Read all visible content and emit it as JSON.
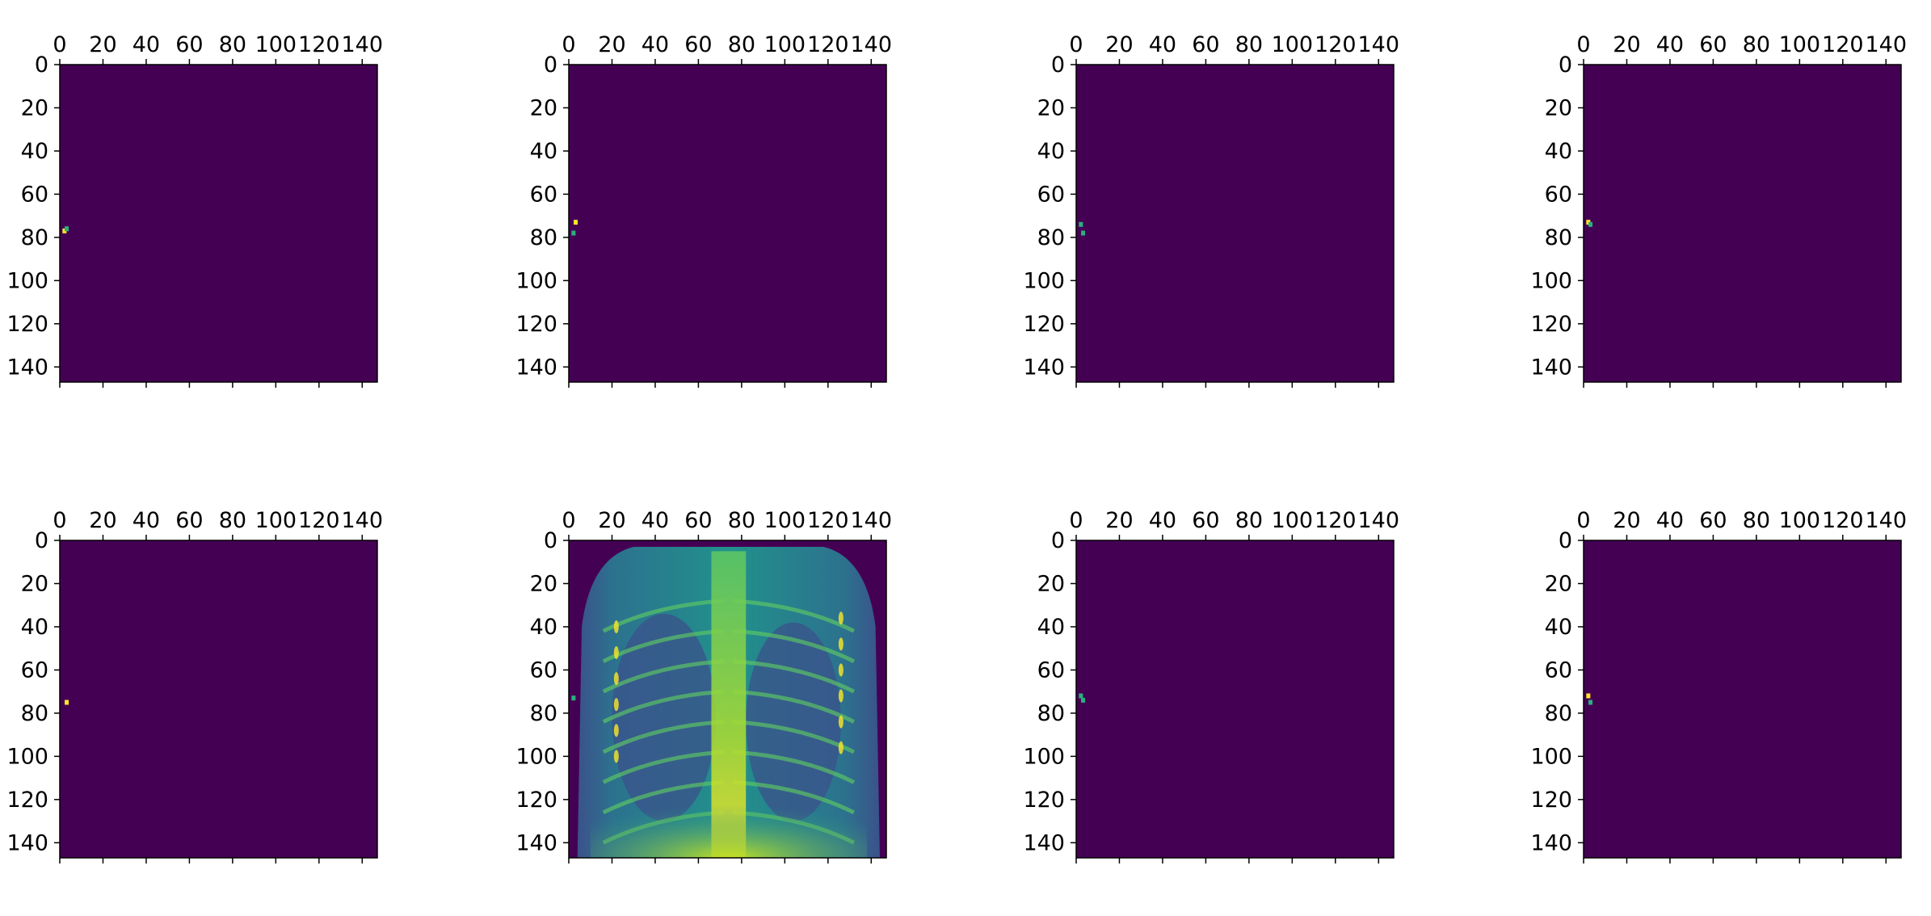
{
  "figure": {
    "colors": {
      "background": "#440154",
      "spine": "#000000",
      "feature_spot": "#2ab07f",
      "feature_hot": "#fde725",
      "xray_low": "#3b528b",
      "xray_mid": "#21918c",
      "xray_high": "#5ec962",
      "xray_peak": "#fde725"
    }
  },
  "chart_data": [
    {
      "type": "heatmap",
      "colormap": "viridis",
      "grid": false,
      "x_axis_position": "top",
      "y_inverted": true,
      "xlim": [
        0,
        147
      ],
      "ylim": [
        147,
        0
      ],
      "xticks": [
        "0",
        "20",
        "40",
        "60",
        "80",
        "100",
        "120",
        "140"
      ],
      "yticks": [
        "0",
        "20",
        "40",
        "60",
        "80",
        "100",
        "120",
        "140"
      ],
      "content": "sparse",
      "bright_spots": [
        {
          "x": 2,
          "y": 77,
          "value": 1.0
        },
        {
          "x": 3,
          "y": 76,
          "value": 0.7
        }
      ]
    },
    {
      "type": "heatmap",
      "colormap": "viridis",
      "grid": false,
      "x_axis_position": "top",
      "y_inverted": true,
      "xlim": [
        0,
        147
      ],
      "ylim": [
        147,
        0
      ],
      "xticks": [
        "0",
        "20",
        "40",
        "60",
        "80",
        "100",
        "120",
        "140"
      ],
      "yticks": [
        "0",
        "20",
        "40",
        "60",
        "80",
        "100",
        "120",
        "140"
      ],
      "content": "sparse",
      "bright_spots": [
        {
          "x": 3,
          "y": 73,
          "value": 1.0
        },
        {
          "x": 2,
          "y": 78,
          "value": 0.8
        }
      ]
    },
    {
      "type": "heatmap",
      "colormap": "viridis",
      "grid": false,
      "x_axis_position": "top",
      "y_inverted": true,
      "xlim": [
        0,
        147
      ],
      "ylim": [
        147,
        0
      ],
      "xticks": [
        "0",
        "20",
        "40",
        "60",
        "80",
        "100",
        "120",
        "140"
      ],
      "yticks": [
        "0",
        "20",
        "40",
        "60",
        "80",
        "100",
        "120",
        "140"
      ],
      "content": "sparse",
      "bright_spots": [
        {
          "x": 2,
          "y": 74,
          "value": 0.7
        },
        {
          "x": 3,
          "y": 78,
          "value": 0.6
        }
      ]
    },
    {
      "type": "heatmap",
      "colormap": "viridis",
      "grid": false,
      "x_axis_position": "top",
      "y_inverted": true,
      "xlim": [
        0,
        147
      ],
      "ylim": [
        147,
        0
      ],
      "xticks": [
        "0",
        "20",
        "40",
        "60",
        "80",
        "100",
        "120",
        "140"
      ],
      "yticks": [
        "0",
        "20",
        "40",
        "60",
        "80",
        "100",
        "120",
        "140"
      ],
      "content": "sparse",
      "bright_spots": [
        {
          "x": 2,
          "y": 73,
          "value": 0.9
        },
        {
          "x": 3,
          "y": 74,
          "value": 0.6
        }
      ]
    },
    {
      "type": "heatmap",
      "colormap": "viridis",
      "grid": false,
      "x_axis_position": "top",
      "y_inverted": true,
      "xlim": [
        0,
        147
      ],
      "ylim": [
        147,
        0
      ],
      "xticks": [
        "0",
        "20",
        "40",
        "60",
        "80",
        "100",
        "120",
        "140"
      ],
      "yticks": [
        "0",
        "20",
        "40",
        "60",
        "80",
        "100",
        "120",
        "140"
      ],
      "content": "sparse",
      "bright_spots": [
        {
          "x": 3,
          "y": 75,
          "value": 1.0
        }
      ]
    },
    {
      "type": "heatmap",
      "colormap": "viridis",
      "grid": false,
      "x_axis_position": "top",
      "y_inverted": true,
      "xlim": [
        0,
        147
      ],
      "ylim": [
        147,
        0
      ],
      "xticks": [
        "0",
        "20",
        "40",
        "60",
        "80",
        "100",
        "120",
        "140"
      ],
      "yticks": [
        "0",
        "20",
        "40",
        "60",
        "80",
        "100",
        "120",
        "140"
      ],
      "content": "chest-xray",
      "bright_spots": [
        {
          "x": 2,
          "y": 73,
          "value": 0.6
        }
      ]
    },
    {
      "type": "heatmap",
      "colormap": "viridis",
      "grid": false,
      "x_axis_position": "top",
      "y_inverted": true,
      "xlim": [
        0,
        147
      ],
      "ylim": [
        147,
        0
      ],
      "xticks": [
        "0",
        "20",
        "40",
        "60",
        "80",
        "100",
        "120",
        "140"
      ],
      "yticks": [
        "0",
        "20",
        "40",
        "60",
        "80",
        "100",
        "120",
        "140"
      ],
      "content": "sparse",
      "bright_spots": [
        {
          "x": 2,
          "y": 72,
          "value": 0.7
        },
        {
          "x": 3,
          "y": 74,
          "value": 0.6
        }
      ]
    },
    {
      "type": "heatmap",
      "colormap": "viridis",
      "grid": false,
      "x_axis_position": "top",
      "y_inverted": true,
      "xlim": [
        0,
        147
      ],
      "ylim": [
        147,
        0
      ],
      "xticks": [
        "0",
        "20",
        "40",
        "60",
        "80",
        "100",
        "120",
        "140"
      ],
      "yticks": [
        "0",
        "20",
        "40",
        "60",
        "80",
        "100",
        "120",
        "140"
      ],
      "content": "sparse",
      "bright_spots": [
        {
          "x": 2,
          "y": 72,
          "value": 1.0
        },
        {
          "x": 3,
          "y": 75,
          "value": 0.5
        }
      ]
    }
  ]
}
